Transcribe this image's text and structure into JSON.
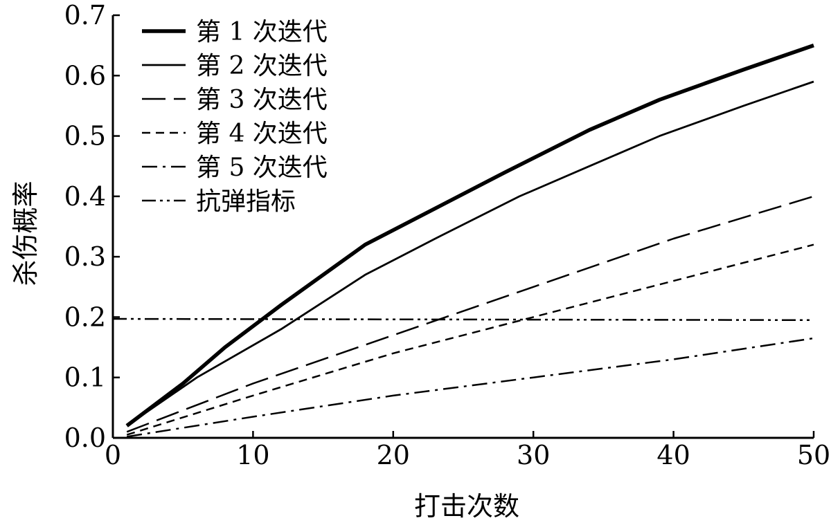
{
  "chart_data": {
    "type": "line",
    "title": "",
    "xlabel": "打击次数",
    "ylabel": "杀伤概率",
    "xlim": [
      0,
      50
    ],
    "ylim": [
      0.0,
      0.7
    ],
    "xticks": [
      "0",
      "10",
      "20",
      "30",
      "40",
      "50"
    ],
    "yticks": [
      "0.0",
      "0.1",
      "0.2",
      "0.3",
      "0.4",
      "0.5",
      "0.6",
      "0.7"
    ],
    "grid": false,
    "legend_position": "top-left",
    "series": [
      {
        "name": "第 1 次迭代",
        "style": "thick-solid",
        "x": [
          1,
          5,
          8,
          12,
          18,
          23,
          28,
          34,
          39,
          45,
          50
        ],
        "y": [
          0.02,
          0.09,
          0.15,
          0.22,
          0.32,
          0.38,
          0.44,
          0.51,
          0.56,
          0.61,
          0.65
        ]
      },
      {
        "name": "第 2 次迭代",
        "style": "solid",
        "x": [
          1,
          6,
          12,
          18,
          23,
          29,
          34,
          39,
          45,
          50
        ],
        "y": [
          0.02,
          0.1,
          0.18,
          0.27,
          0.33,
          0.4,
          0.45,
          0.5,
          0.55,
          0.59
        ]
      },
      {
        "name": "第 3 次迭代",
        "style": "long-dash",
        "x": [
          1,
          10,
          20,
          30,
          40,
          50
        ],
        "y": [
          0.01,
          0.09,
          0.17,
          0.25,
          0.33,
          0.4
        ]
      },
      {
        "name": "第 4 次迭代",
        "style": "short-dash",
        "x": [
          1,
          10,
          20,
          30,
          40,
          50
        ],
        "y": [
          0.005,
          0.07,
          0.14,
          0.2,
          0.26,
          0.32
        ]
      },
      {
        "name": "第 5 次迭代",
        "style": "dash-dot",
        "x": [
          1,
          10,
          20,
          30,
          40,
          50
        ],
        "y": [
          0.002,
          0.035,
          0.07,
          0.1,
          0.13,
          0.165
        ]
      },
      {
        "name": "抗弹指标",
        "style": "dash-dot-dot",
        "x": [
          0,
          50
        ],
        "y": [
          0.197,
          0.195
        ]
      }
    ]
  }
}
